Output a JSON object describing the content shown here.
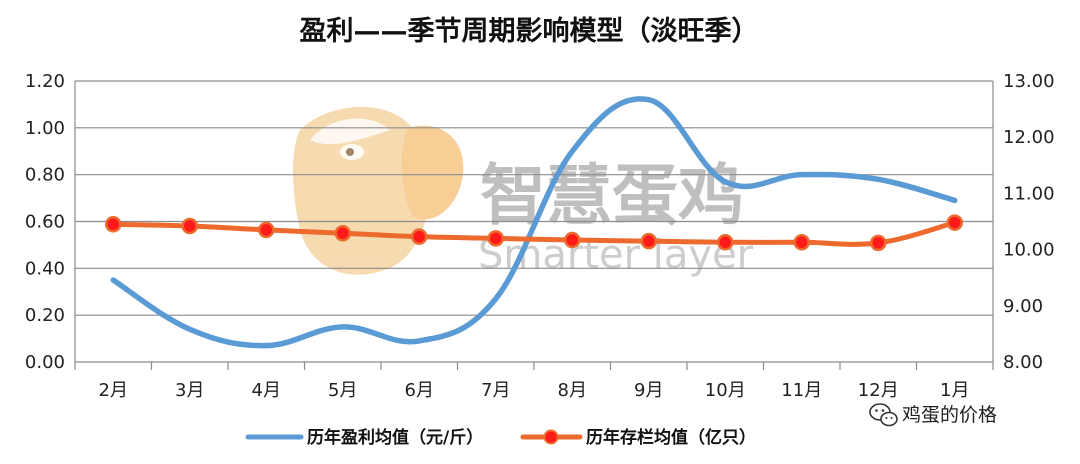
{
  "chart_data": {
    "type": "line",
    "title": "盈利——季节周期影响模型（淡旺季）",
    "categories": [
      "2月",
      "3月",
      "4月",
      "5月",
      "6月",
      "7月",
      "8月",
      "9月",
      "10月",
      "11月",
      "12月",
      "1月"
    ],
    "y_left": {
      "ylim": [
        0,
        1.2
      ],
      "ticks": [
        "0.00",
        "0.20",
        "0.40",
        "0.60",
        "0.80",
        "1.00",
        "1.20"
      ]
    },
    "y_right": {
      "ylim": [
        8,
        13
      ],
      "ticks": [
        "8.00",
        "9.00",
        "10.00",
        "11.00",
        "12.00",
        "13.00"
      ]
    },
    "grid": true,
    "legend_position": "bottom",
    "series": [
      {
        "name": "历年盈利均值（元/斤）",
        "axis": "left",
        "color": "#5b9bd5",
        "marker": "none",
        "smooth": true,
        "values": [
          0.35,
          0.14,
          0.07,
          0.15,
          0.09,
          0.27,
          0.9,
          1.12,
          0.77,
          0.8,
          0.78,
          0.69
        ]
      },
      {
        "name": "历年存栏均值（亿只）",
        "axis": "right",
        "color": "#ed6a2e",
        "marker": "circle",
        "marker_color": "#ff1a1a",
        "smooth": true,
        "values": [
          10.45,
          10.42,
          10.35,
          10.29,
          10.23,
          10.2,
          10.17,
          10.15,
          10.13,
          10.13,
          10.12,
          10.48
        ]
      }
    ]
  },
  "watermark": {
    "brand": "智慧蛋鸡",
    "sub": "Smarter layer"
  },
  "wechat_badge": {
    "icon": "wechat-icon",
    "text": "鸡蛋的价格"
  }
}
